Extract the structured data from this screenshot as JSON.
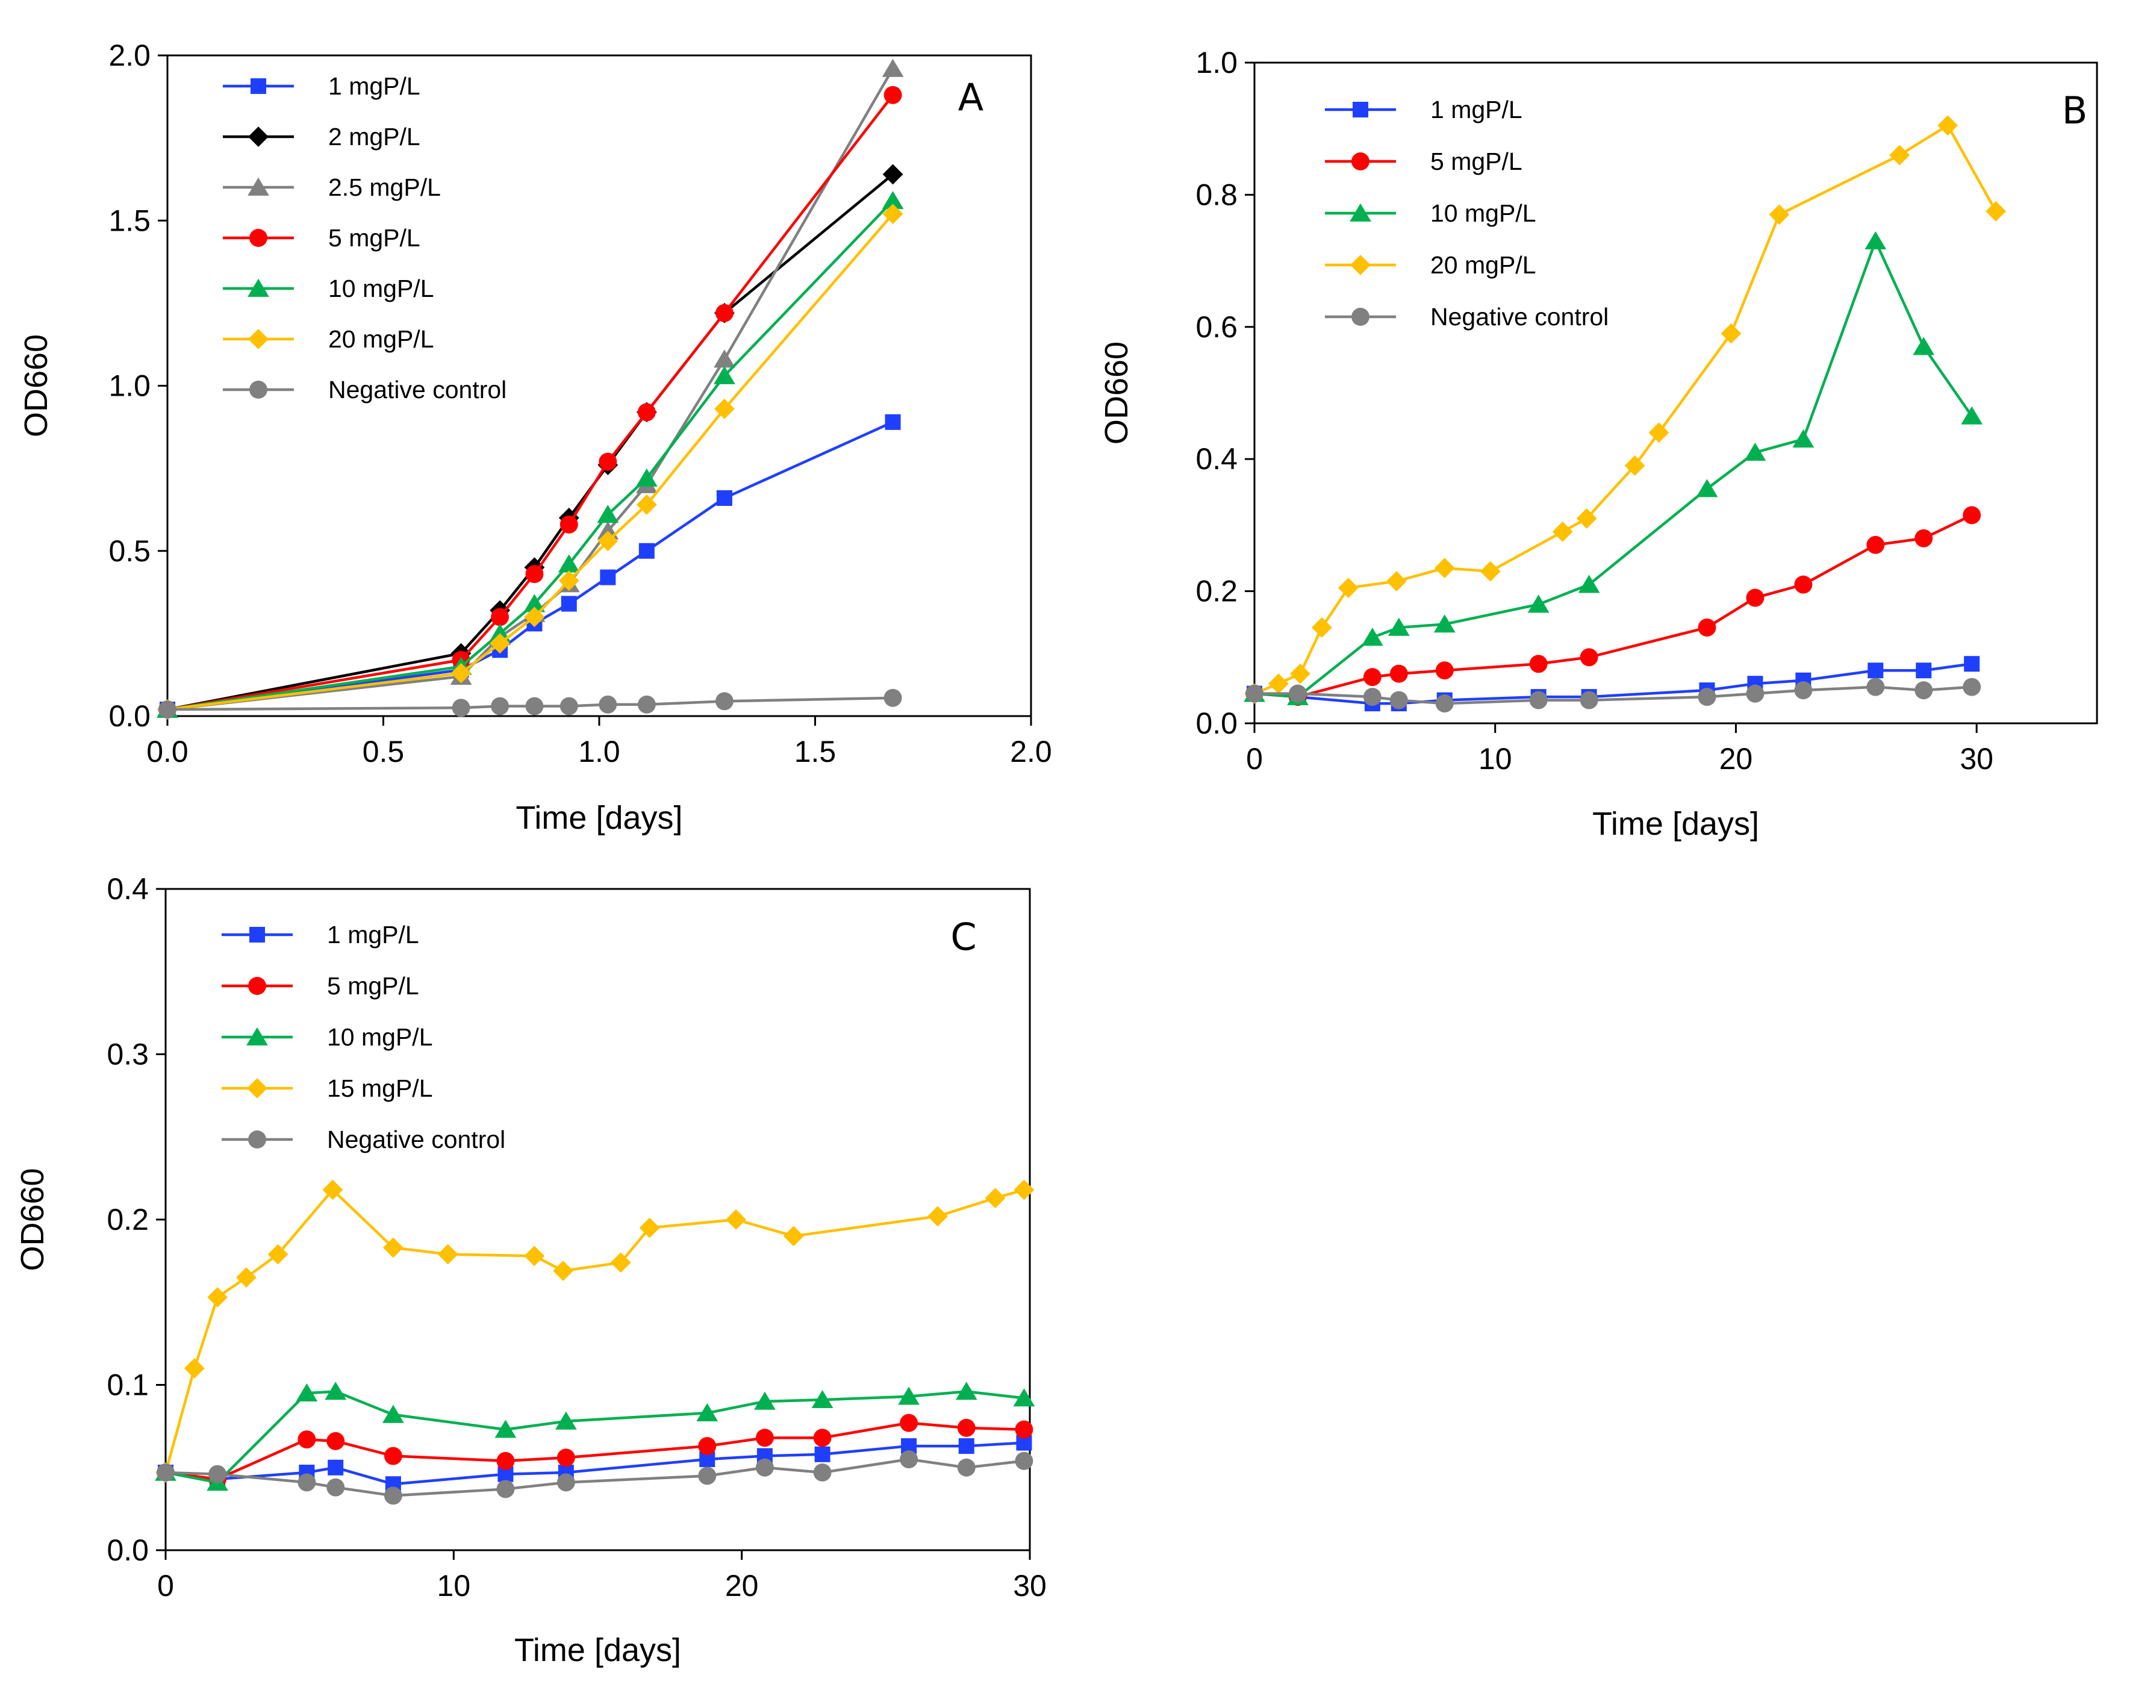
{
  "chart_data": [
    {
      "type": "line",
      "panel_label": "A",
      "xlabel": "Time [days]",
      "ylabel": "OD660",
      "xlim": [
        0,
        2
      ],
      "ylim": [
        0,
        2
      ],
      "xticks": [
        0,
        0.5,
        1,
        1.5,
        2
      ],
      "yticks": [
        0,
        0.5,
        1,
        1.5,
        2
      ],
      "xtick_labels": [
        "0.0",
        "0.5",
        "1.0",
        "1.5",
        "2.0"
      ],
      "ytick_labels": [
        "0.0",
        "0.5",
        "1.0",
        "1.5",
        "2.0"
      ],
      "legend_position": "top-left",
      "series": [
        {
          "name": "1 mgP/L",
          "color": "#1f3fff",
          "marker": "square",
          "x": [
            0,
            0.68,
            0.77,
            0.85,
            0.93,
            1.02,
            1.11,
            1.29,
            1.68
          ],
          "y": [
            0.02,
            0.14,
            0.2,
            0.28,
            0.34,
            0.42,
            0.5,
            0.66,
            0.89
          ]
        },
        {
          "name": "2 mgP/L",
          "color": "#000000",
          "marker": "diamond",
          "x": [
            0,
            0.68,
            0.77,
            0.85,
            0.93,
            1.02,
            1.11,
            1.29,
            1.68
          ],
          "y": [
            0.02,
            0.19,
            0.32,
            0.45,
            0.6,
            0.76,
            0.92,
            1.22,
            1.64
          ]
        },
        {
          "name": "2.5 mgP/L",
          "color": "#808080",
          "marker": "triangle",
          "x": [
            0,
            0.68,
            0.77,
            0.85,
            0.93,
            1.02,
            1.11,
            1.29,
            1.68
          ],
          "y": [
            0.02,
            0.12,
            0.24,
            0.31,
            0.4,
            0.56,
            0.7,
            1.08,
            1.96
          ]
        },
        {
          "name": "5 mgP/L",
          "color": "#ff0000",
          "marker": "circle",
          "x": [
            0,
            0.68,
            0.77,
            0.85,
            0.93,
            1.02,
            1.11,
            1.29,
            1.68
          ],
          "y": [
            0.02,
            0.17,
            0.3,
            0.43,
            0.58,
            0.77,
            0.92,
            1.22,
            1.88
          ]
        },
        {
          "name": "10 mgP/L",
          "color": "#00b050",
          "marker": "triangle",
          "x": [
            0,
            0.68,
            0.77,
            0.85,
            0.93,
            1.02,
            1.11,
            1.29,
            1.68
          ],
          "y": [
            0.02,
            0.15,
            0.25,
            0.34,
            0.46,
            0.61,
            0.72,
            1.03,
            1.56
          ]
        },
        {
          "name": "20 mgP/L",
          "color": "#ffc000",
          "marker": "diamond",
          "x": [
            0,
            0.68,
            0.77,
            0.85,
            0.93,
            1.02,
            1.11,
            1.29,
            1.68
          ],
          "y": [
            0.02,
            0.13,
            0.22,
            0.3,
            0.41,
            0.53,
            0.64,
            0.93,
            1.52
          ]
        },
        {
          "name": "Negative control",
          "color": "#808080",
          "marker": "circle",
          "x": [
            0,
            0.68,
            0.77,
            0.85,
            0.93,
            1.02,
            1.11,
            1.29,
            1.68
          ],
          "y": [
            0.02,
            0.025,
            0.03,
            0.03,
            0.03,
            0.035,
            0.035,
            0.045,
            0.055
          ]
        }
      ]
    },
    {
      "type": "line",
      "panel_label": "B",
      "xlabel": "Time [days]",
      "ylabel": "OD660",
      "xlim": [
        0,
        35
      ],
      "ylim": [
        0,
        1
      ],
      "xticks": [
        0,
        10,
        20,
        30
      ],
      "yticks": [
        0,
        0.2,
        0.4,
        0.6,
        0.8,
        1.0
      ],
      "xtick_labels": [
        "0",
        "10",
        "20",
        "30"
      ],
      "ytick_labels": [
        "0.0",
        "0.2",
        "0.4",
        "0.6",
        "0.8",
        "1.0"
      ],
      "legend_position": "top-left",
      "series": [
        {
          "name": "1 mgP/L",
          "color": "#1f3fff",
          "marker": "square",
          "x": [
            0,
            1.8,
            4.9,
            6,
            7.9,
            11.8,
            13.9,
            18.8,
            20.8,
            22.8,
            25.8,
            27.8,
            29.8
          ],
          "y": [
            0.045,
            0.04,
            0.03,
            0.03,
            0.035,
            0.04,
            0.04,
            0.05,
            0.06,
            0.065,
            0.08,
            0.08,
            0.09
          ]
        },
        {
          "name": "5 mgP/L",
          "color": "#ff0000",
          "marker": "circle",
          "x": [
            0,
            1.8,
            4.9,
            6,
            7.9,
            11.8,
            13.9,
            18.8,
            20.8,
            22.8,
            25.8,
            27.8,
            29.8
          ],
          "y": [
            0.045,
            0.04,
            0.07,
            0.075,
            0.08,
            0.09,
            0.1,
            0.145,
            0.19,
            0.21,
            0.27,
            0.28,
            0.315
          ]
        },
        {
          "name": "10 mgP/L",
          "color": "#00b050",
          "marker": "triangle",
          "x": [
            0,
            1.8,
            4.9,
            6,
            7.9,
            11.8,
            13.9,
            18.8,
            20.8,
            22.8,
            25.8,
            27.8,
            29.8
          ],
          "y": [
            0.045,
            0.04,
            0.13,
            0.145,
            0.15,
            0.18,
            0.21,
            0.355,
            0.41,
            0.43,
            0.73,
            0.57,
            0.465
          ]
        },
        {
          "name": "20 mgP/L",
          "color": "#ffc000",
          "marker": "diamond",
          "x": [
            0,
            1,
            1.9,
            2.8,
            3.9,
            5.9,
            7.9,
            9.8,
            12.8,
            13.8,
            15.8,
            16.8,
            19.8,
            21.8,
            26.8,
            28.8,
            30.8
          ],
          "y": [
            0.045,
            0.06,
            0.075,
            0.145,
            0.205,
            0.215,
            0.235,
            0.23,
            0.29,
            0.31,
            0.39,
            0.44,
            0.59,
            0.77,
            0.86,
            0.905,
            0.775
          ]
        },
        {
          "name": "Negative control",
          "color": "#808080",
          "marker": "circle",
          "x": [
            0,
            1.8,
            4.9,
            6,
            7.9,
            11.8,
            13.9,
            18.8,
            20.8,
            22.8,
            25.8,
            27.8,
            29.8
          ],
          "y": [
            0.045,
            0.045,
            0.04,
            0.035,
            0.03,
            0.035,
            0.035,
            0.04,
            0.045,
            0.05,
            0.055,
            0.05,
            0.055
          ]
        }
      ]
    },
    {
      "type": "line",
      "panel_label": "C",
      "xlabel": "Time [days]",
      "ylabel": "OD660",
      "xlim": [
        0,
        30
      ],
      "ylim": [
        0,
        0.4
      ],
      "xticks": [
        0,
        10,
        20,
        30
      ],
      "yticks": [
        0,
        0.1,
        0.2,
        0.3,
        0.4
      ],
      "xtick_labels": [
        "0",
        "10",
        "20",
        "30"
      ],
      "ytick_labels": [
        "0.0",
        "0.1",
        "0.2",
        "0.3",
        "0.4"
      ],
      "legend_position": "top-left",
      "series": [
        {
          "name": "1 mgP/L",
          "color": "#1f3fff",
          "marker": "square",
          "x": [
            0,
            1.8,
            4.9,
            5.9,
            7.9,
            11.8,
            13.9,
            18.8,
            20.8,
            22.8,
            25.8,
            27.8,
            29.8
          ],
          "y": [
            0.047,
            0.043,
            0.047,
            0.05,
            0.04,
            0.046,
            0.047,
            0.055,
            0.057,
            0.058,
            0.063,
            0.063,
            0.065
          ]
        },
        {
          "name": "5 mgP/L",
          "color": "#ff0000",
          "marker": "circle",
          "x": [
            0,
            1.8,
            4.9,
            5.9,
            7.9,
            11.8,
            13.9,
            18.8,
            20.8,
            22.8,
            25.8,
            27.8,
            29.8
          ],
          "y": [
            0.047,
            0.043,
            0.067,
            0.066,
            0.057,
            0.054,
            0.056,
            0.063,
            0.068,
            0.068,
            0.077,
            0.074,
            0.073
          ]
        },
        {
          "name": "10 mgP/L",
          "color": "#00b050",
          "marker": "triangle",
          "x": [
            0,
            1.8,
            4.9,
            5.9,
            7.9,
            11.8,
            13.9,
            18.8,
            20.8,
            22.8,
            25.8,
            27.8,
            29.8
          ],
          "y": [
            0.047,
            0.041,
            0.095,
            0.096,
            0.082,
            0.073,
            0.078,
            0.083,
            0.09,
            0.091,
            0.093,
            0.096,
            0.092
          ]
        },
        {
          "name": "15 mgP/L",
          "color": "#ffc000",
          "marker": "diamond",
          "x": [
            0,
            1,
            1.8,
            2.8,
            3.9,
            5.8,
            7.9,
            9.8,
            12.8,
            13.8,
            15.8,
            16.8,
            19.8,
            21.8,
            26.8,
            28.8,
            29.8
          ],
          "y": [
            0.047,
            0.11,
            0.153,
            0.165,
            0.179,
            0.218,
            0.183,
            0.179,
            0.178,
            0.169,
            0.174,
            0.195,
            0.2,
            0.19,
            0.202,
            0.213,
            0.218
          ]
        },
        {
          "name": "Negative control",
          "color": "#808080",
          "marker": "circle",
          "x": [
            0,
            1.8,
            4.9,
            5.9,
            7.9,
            11.8,
            13.9,
            18.8,
            20.8,
            22.8,
            25.8,
            27.8,
            29.8
          ],
          "y": [
            0.047,
            0.046,
            0.041,
            0.038,
            0.033,
            0.037,
            0.041,
            0.045,
            0.05,
            0.047,
            0.055,
            0.05,
            0.054
          ]
        }
      ]
    }
  ]
}
